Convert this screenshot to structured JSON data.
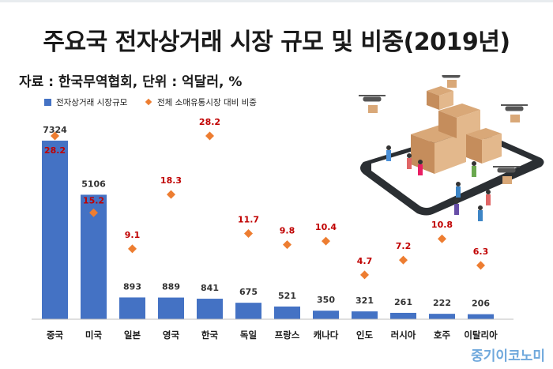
{
  "title": "주요국 전자상거래 시장 규모 및 비중(2019년)",
  "subtitle": "자료 : 한국무역협회, 단위 : 억달러, %",
  "brand": "중기이코노미",
  "colors": {
    "bar": "#4472c4",
    "marker": "#ed7d31",
    "pct_label": "#c00000",
    "value_label": "#333333"
  },
  "chart_data": {
    "type": "bar",
    "categories": [
      "중국",
      "미국",
      "일본",
      "영국",
      "한국",
      "독일",
      "프랑스",
      "캐나다",
      "인도",
      "러시아",
      "호주",
      "이탈리아"
    ],
    "series": [
      {
        "name": "전자상거래 시장규모",
        "type": "bar",
        "values": [
          7324,
          5106,
          893,
          889,
          841,
          675,
          521,
          350,
          321,
          261,
          222,
          206
        ]
      },
      {
        "name": "전체 소매유통시장 대비 비중",
        "type": "scatter",
        "values": [
          28.2,
          15.2,
          9.1,
          18.3,
          28.2,
          11.7,
          9.8,
          10.4,
          4.7,
          7.2,
          10.8,
          6.3
        ]
      }
    ],
    "legend": "top-left"
  }
}
